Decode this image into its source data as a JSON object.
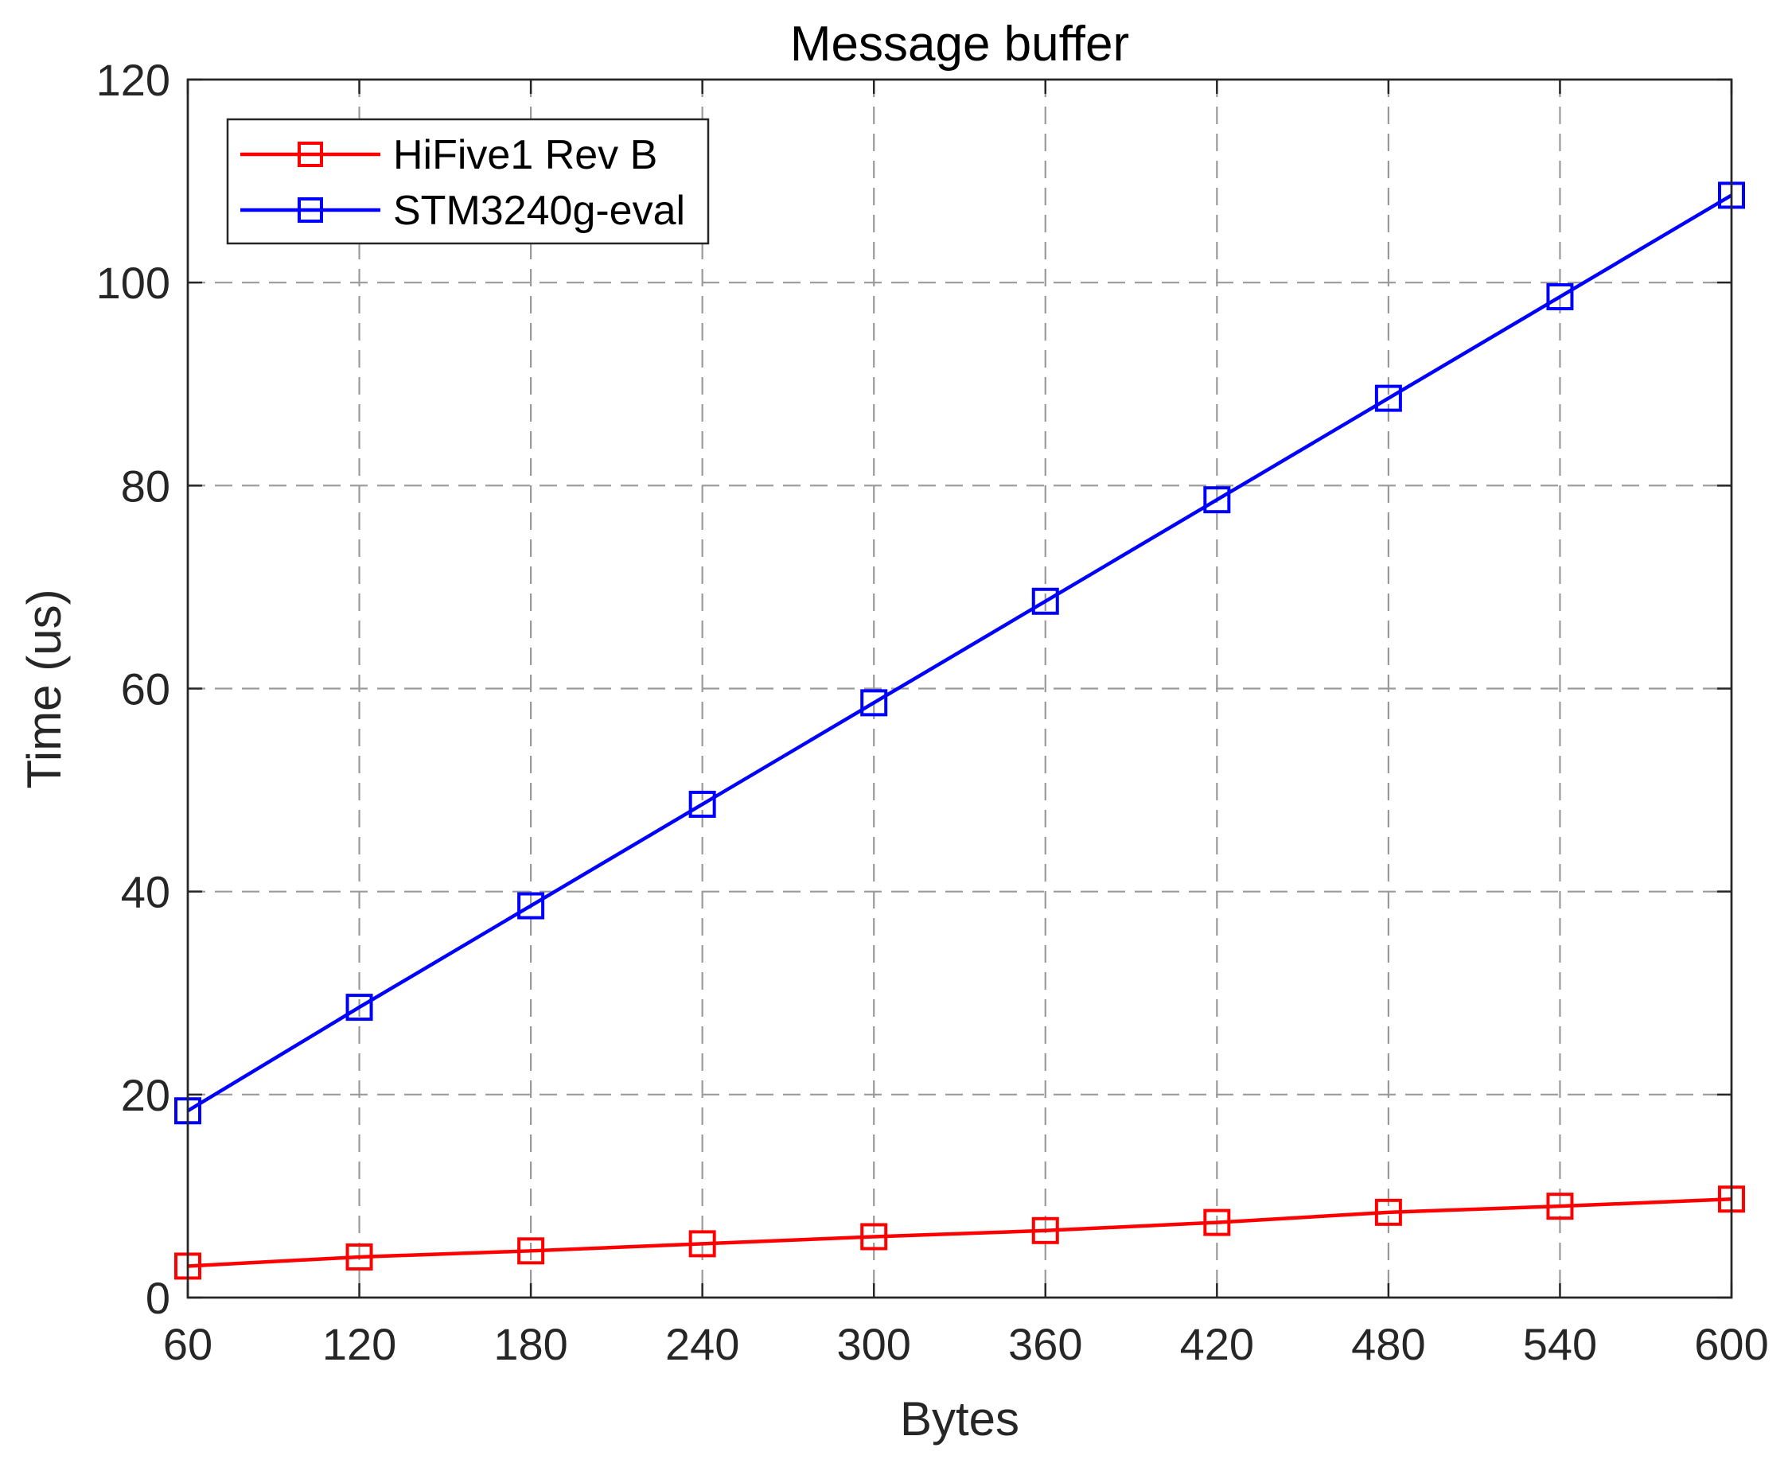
{
  "chart_data": {
    "type": "line",
    "title": "Message buffer",
    "xlabel": "Bytes",
    "ylabel": "Time (us)",
    "x": [
      60,
      120,
      180,
      240,
      300,
      360,
      420,
      480,
      540,
      600
    ],
    "xlim": [
      60,
      600
    ],
    "ylim": [
      0,
      120
    ],
    "xticks": [
      "60",
      "120",
      "180",
      "240",
      "300",
      "360",
      "420",
      "480",
      "540",
      "600"
    ],
    "yticks": [
      "0",
      "20",
      "40",
      "60",
      "80",
      "100",
      "120"
    ],
    "grid": true,
    "legend_position": "top-left",
    "marker": "square",
    "series": [
      {
        "name": "HiFive1 Rev B",
        "color": "#ff0000",
        "values": [
          3.1,
          4.0,
          4.6,
          5.3,
          6.0,
          6.6,
          7.4,
          8.4,
          9.0,
          9.7
        ]
      },
      {
        "name": "STM3240g-eval",
        "color": "#0000ff",
        "values": [
          18.4,
          28.6,
          38.6,
          48.6,
          58.6,
          68.6,
          78.6,
          88.6,
          98.6,
          108.6
        ]
      }
    ]
  }
}
